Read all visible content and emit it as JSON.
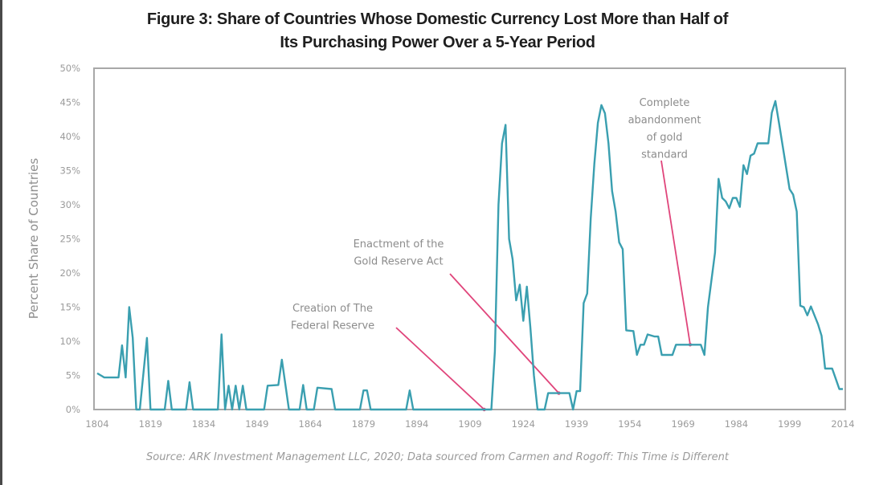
{
  "chart_data": {
    "type": "line",
    "title_lines": [
      "Figure 3: Share of Countries Whose Domestic Currency Lost More than Half of",
      "Its Purchasing Power Over a 5-Year Period"
    ],
    "xlabel": "",
    "ylabel": "Percent Share of Countries",
    "xlim": [
      1804,
      2014
    ],
    "ylim": [
      0,
      50
    ],
    "x_ticks": [
      "1804",
      "1819",
      "1834",
      "1849",
      "1864",
      "1879",
      "1894",
      "1909",
      "1924",
      "1939",
      "1954",
      "1969",
      "1984",
      "1999",
      "2014"
    ],
    "y_ticks": [
      "0%",
      "5%",
      "10%",
      "15%",
      "20%",
      "25%",
      "30%",
      "35%",
      "40%",
      "45%",
      "50%"
    ],
    "grid": false,
    "legend": "none",
    "series": [
      {
        "name": "Share of countries",
        "color": "#3a9fb0",
        "x": [
          1804,
          1806,
          1810,
          1811,
          1812,
          1813,
          1814,
          1815,
          1816,
          1818,
          1819,
          1823,
          1824,
          1825,
          1829,
          1830,
          1831,
          1838,
          1839,
          1840,
          1841,
          1842,
          1843,
          1844,
          1845,
          1846,
          1851,
          1852,
          1855,
          1856,
          1858,
          1861,
          1862,
          1863,
          1865,
          1866,
          1870,
          1871,
          1878,
          1879,
          1880,
          1881,
          1891,
          1892,
          1893,
          1915,
          1916,
          1917,
          1918,
          1919,
          1920,
          1921,
          1922,
          1923,
          1924,
          1925,
          1926,
          1927,
          1928,
          1930,
          1931,
          1937,
          1938,
          1939,
          1940,
          1941,
          1942,
          1943,
          1944,
          1945,
          1946,
          1947,
          1948,
          1949,
          1950,
          1951,
          1952,
          1953,
          1955,
          1956,
          1957,
          1958,
          1959,
          1961,
          1962,
          1963,
          1966,
          1967,
          1974,
          1975,
          1976,
          1978,
          1979,
          1980,
          1981,
          1982,
          1983,
          1984,
          1985,
          1986,
          1987,
          1988,
          1989,
          1990,
          1993,
          1994,
          1995,
          1996,
          1999,
          2000,
          2001,
          2002,
          2003,
          2004,
          2005,
          2007,
          2008,
          2009,
          2011,
          2012,
          2013,
          2014
        ],
        "values": [
          5.3,
          4.7,
          4.7,
          9.4,
          4.7,
          15.0,
          10.5,
          0,
          0,
          10.5,
          0,
          0,
          4.2,
          0,
          0,
          4.0,
          0,
          0,
          11.0,
          0,
          3.5,
          0,
          3.5,
          0,
          3.5,
          0,
          0,
          3.5,
          3.6,
          7.3,
          0,
          0,
          3.6,
          0,
          0,
          3.2,
          3.0,
          0,
          0,
          2.8,
          2.8,
          0,
          0,
          2.8,
          0,
          0,
          8.5,
          30,
          39,
          41.7,
          25,
          22,
          16,
          18.3,
          13,
          18,
          12,
          5,
          0,
          0,
          2.4,
          2.4,
          0,
          2.7,
          2.7,
          15.6,
          17,
          28,
          36,
          42,
          44.6,
          43.4,
          39,
          32,
          29,
          24.5,
          23.5,
          11.6,
          11.5,
          8,
          9.5,
          9.5,
          11,
          10.7,
          10.7,
          8,
          8,
          9.5,
          9.5,
          8,
          15,
          23,
          33.8,
          31,
          30.5,
          29.5,
          31,
          31,
          29.7,
          35.8,
          34.5,
          37.2,
          37.5,
          39,
          39,
          43.5,
          45.2,
          42,
          32.3,
          31.5,
          29,
          15.2,
          15,
          13.8,
          15.1,
          12.5,
          10.8,
          6,
          6,
          4.5,
          3,
          3
        ]
      }
    ],
    "annotations": [
      {
        "lines": [
          "Creation of The",
          "Federal Reserve"
        ],
        "target_year": 1913,
        "target_value": 0,
        "arrow_color": "#e0457b"
      },
      {
        "lines": [
          "Enactment of the",
          "Gold Reserve Act"
        ],
        "target_year": 1934,
        "target_value": 2.4,
        "arrow_color": "#e0457b"
      },
      {
        "lines": [
          "Complete",
          "abandonment",
          "of gold",
          "standard"
        ],
        "target_year": 1971,
        "target_value": 9.5,
        "arrow_color": "#e0457b"
      }
    ],
    "source": "Source: ARK Investment Management LLC, 2020; Data sourced from Carmen and Rogoff: This Time is Different"
  }
}
